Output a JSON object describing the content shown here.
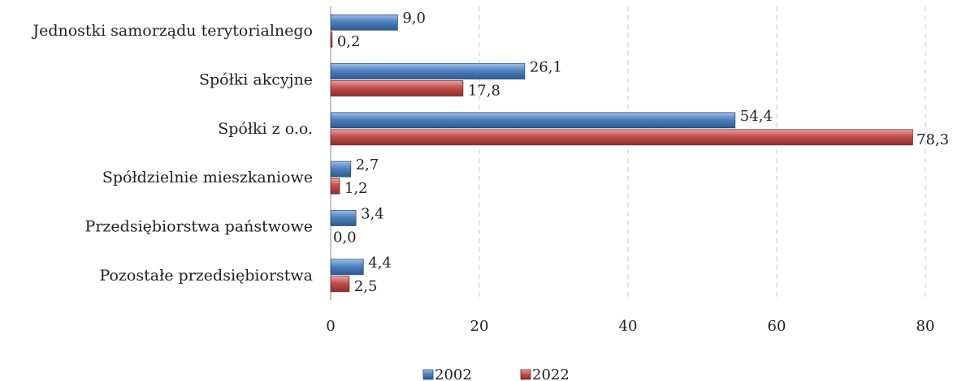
{
  "chart_data": {
    "type": "bar",
    "orientation": "horizontal",
    "categories": [
      "Jednostki samorządu terytorialnego",
      "Spółki akcyjne",
      "Spółki z o.o.",
      "Spółdzielnie mieszkaniowe",
      "Przedsiębiorstwa państwowe",
      "Pozostałe przedsiębiorstwa"
    ],
    "series": [
      {
        "name": "2002",
        "color": "#4f81bd",
        "values": [
          9.0,
          26.1,
          54.4,
          2.7,
          3.4,
          4.4
        ],
        "labels": [
          "9,0",
          "26,1",
          "54,4",
          "2,7",
          "3,4",
          "4,4"
        ]
      },
      {
        "name": "2022",
        "color": "#c0504d",
        "values": [
          0.2,
          17.8,
          78.3,
          1.2,
          0.0,
          2.5
        ],
        "labels": [
          "0,2",
          "17,8",
          "78,3",
          "1,2",
          "0,0",
          "2,5"
        ]
      }
    ],
    "xlim": [
      0,
      80
    ],
    "xticks": [
      "0",
      "20",
      "40",
      "60",
      "80"
    ],
    "grid": "vertical-dashed",
    "legend_position": "bottom-center"
  }
}
